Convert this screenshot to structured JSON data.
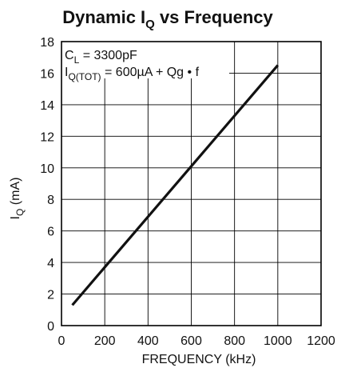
{
  "chart_data": {
    "type": "line",
    "title": {
      "main": "Dynamic I",
      "sub": "Q",
      "suffix": " vs Frequency"
    },
    "xlabel": "FREQUENCY (kHz)",
    "ylabel": {
      "main": "I",
      "sub": "Q",
      "suffix": " (mA)"
    },
    "xlim": [
      0,
      1200
    ],
    "ylim": [
      0,
      18
    ],
    "x_ticks": [
      0,
      200,
      400,
      600,
      800,
      1000,
      1200
    ],
    "y_ticks": [
      0,
      2,
      4,
      6,
      8,
      10,
      12,
      14,
      16,
      18
    ],
    "grid": true,
    "annotations": [
      {
        "main": "C",
        "sub": "L",
        "suffix": " = 3300pF"
      },
      {
        "main": "I",
        "sub": "Q(TOT)",
        "suffix": " = 600µA + Qg • f"
      }
    ],
    "series": [
      {
        "x": [
          50,
          1000
        ],
        "y": [
          1.3,
          16.5
        ]
      }
    ],
    "colors": {
      "line": "#111111",
      "grid": "#000000",
      "text": "#111111"
    }
  }
}
